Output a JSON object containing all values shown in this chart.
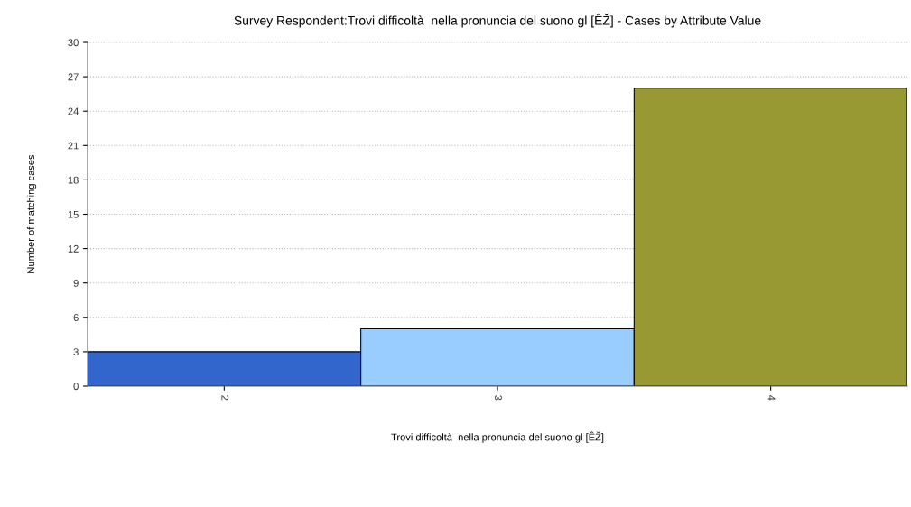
{
  "chart_data": {
    "type": "bar",
    "title": "Survey Respondent:Trovi difficoltà  nella pronuncia del suono gl [ÊŽ] - Cases by Attribute Value",
    "xlabel": "Trovi difficoltà  nella pronuncia del suono gl [ÊŽ]",
    "ylabel": "Number of matching cases",
    "categories": [
      "2",
      "3",
      "4"
    ],
    "values": [
      3,
      5,
      26
    ],
    "colors": [
      "#3366cc",
      "#99ccff",
      "#999933"
    ],
    "ylim": [
      0,
      30
    ],
    "yticks": [
      0,
      3,
      6,
      9,
      12,
      15,
      18,
      21,
      24,
      27,
      30
    ],
    "grid": "y"
  }
}
